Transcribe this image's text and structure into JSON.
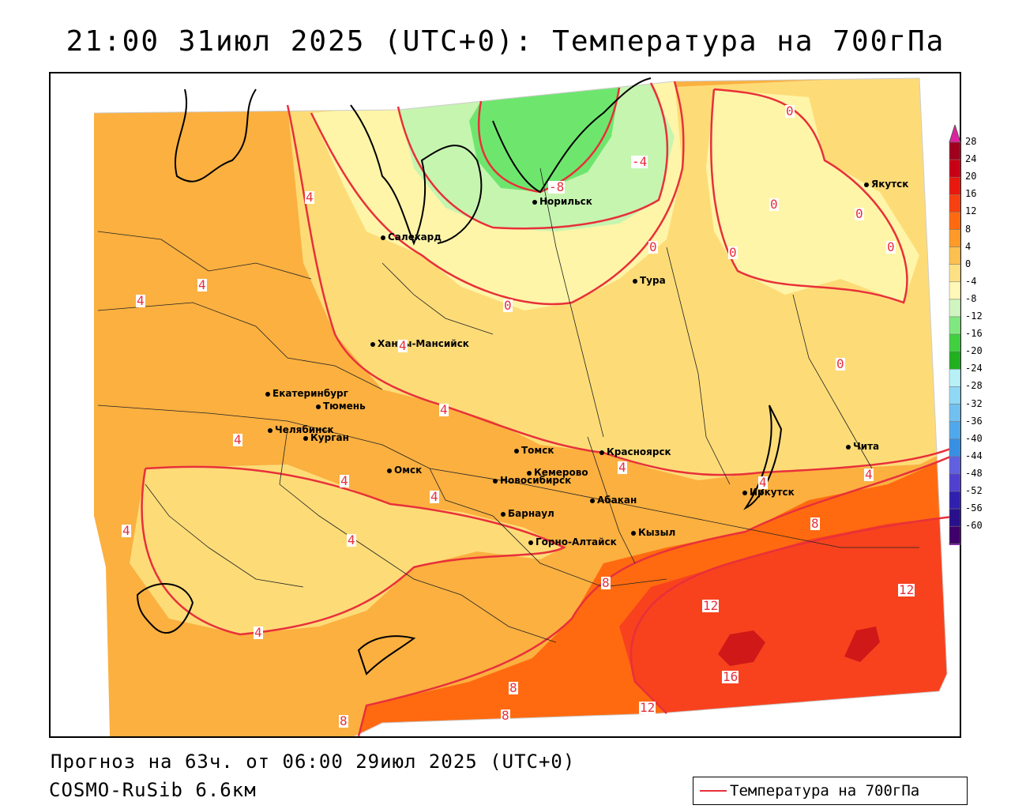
{
  "title": "21:00 31июл 2025 (UTC+0): Температура на 700гПа",
  "footer": {
    "forecast": "Прогноз на 63ч. от 06:00 29июл 2025 (UTC+0)",
    "model": "COSMO-RuSib 6.6км"
  },
  "key": {
    "label": "Температура на 700гПа",
    "color": "#e8303a"
  },
  "colors": {
    "c_8_12": "#ff6a10",
    "c_4_8": "#fbb040",
    "c_0_4": "#fddc78",
    "c_m4_0": "#fff5a8",
    "c_m8_m4": "#c6f5b0",
    "c_m12_m8": "#6ee66e",
    "c_12_16": "#f8421e",
    "c_16_20": "#d01818",
    "contour": "#e8303a"
  },
  "legend": {
    "labels": [
      "28",
      "24",
      "20",
      "16",
      "12",
      "8",
      "4",
      "0",
      "-4",
      "-8",
      "-12",
      "-16",
      "-20",
      "-24",
      "-28",
      "-32",
      "-36",
      "-40",
      "-44",
      "-48",
      "-52",
      "-56",
      "-60"
    ],
    "colors": [
      "#a0001e",
      "#c80016",
      "#e8180e",
      "#f84010",
      "#ff6a10",
      "#ff9a28",
      "#fbc050",
      "#fde084",
      "#fff8b8",
      "#d0f5c0",
      "#80e880",
      "#40d040",
      "#20b020",
      "#b8f0f8",
      "#90d8f4",
      "#70c0f0",
      "#50a8ec",
      "#3890e4",
      "#6060e0",
      "#5040d0",
      "#3020b0",
      "#28108c",
      "#40006c"
    ],
    "top_color": "#e020a0",
    "bottom_color": "#9020c0"
  },
  "cities": [
    {
      "name": "Якутск"
    },
    {
      "name": "Норильск"
    },
    {
      "name": "Салехард"
    },
    {
      "name": "Тура"
    },
    {
      "name": "Ханты-Мансийск"
    },
    {
      "name": "Екатеринбург"
    },
    {
      "name": "Тюмень"
    },
    {
      "name": "Челябинск"
    },
    {
      "name": "Курган"
    },
    {
      "name": "Омск"
    },
    {
      "name": "Новосибирск"
    },
    {
      "name": "Томск"
    },
    {
      "name": "Кемерово"
    },
    {
      "name": "Красноярск"
    },
    {
      "name": "Барнаул"
    },
    {
      "name": "Абакан"
    },
    {
      "name": "Горно-Алтайск"
    },
    {
      "name": "Кызыл"
    },
    {
      "name": "Иркутск"
    },
    {
      "name": "Чита"
    }
  ],
  "contour_labels": [
    "0",
    "0",
    "0",
    "0",
    "0",
    "0",
    "0",
    "0",
    "-4",
    "-8",
    "4",
    "4",
    "4",
    "4",
    "4",
    "4",
    "4",
    "4",
    "4",
    "4",
    "4",
    "4",
    "4",
    "4",
    "8",
    "8",
    "8",
    "8",
    "8",
    "12",
    "12",
    "12",
    "16"
  ]
}
